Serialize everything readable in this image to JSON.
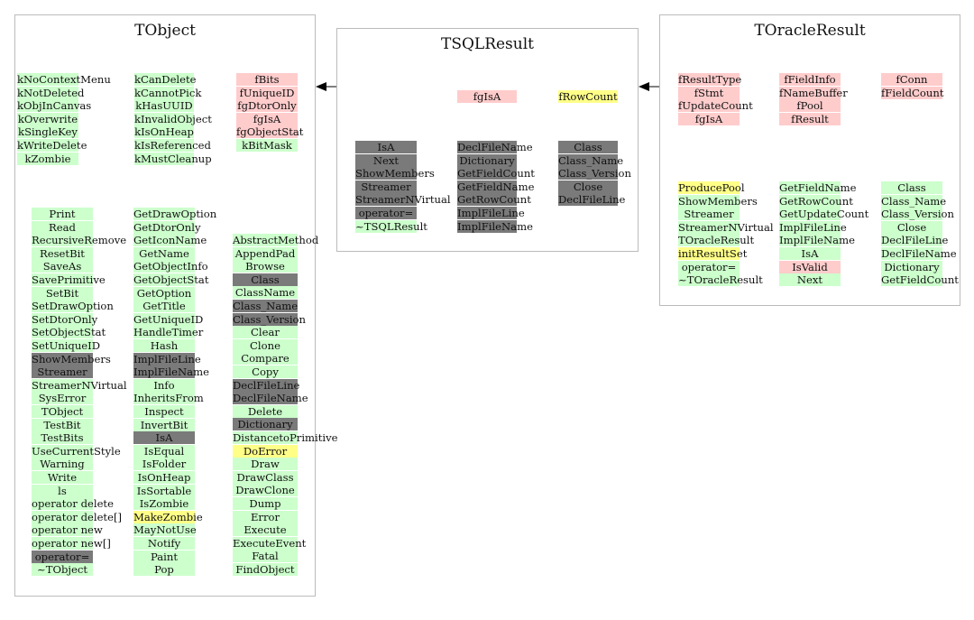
{
  "classes": {
    "tobject": {
      "title": "TObject",
      "columns": [
        {
          "cells": [
            {
              "t": "kNoContextMenu",
              "c": "green"
            },
            {
              "t": "kNotDeleted",
              "c": "green"
            },
            {
              "t": "kObjInCanvas",
              "c": "green"
            },
            {
              "t": "kOverwrite",
              "c": "green"
            },
            {
              "t": "kSingleKey",
              "c": "green"
            },
            {
              "t": "kWriteDelete",
              "c": "green"
            },
            {
              "t": "kZombie",
              "c": "green"
            }
          ]
        },
        {
          "cells": [
            {
              "t": "kCanDelete",
              "c": "green"
            },
            {
              "t": "kCannotPick",
              "c": "green"
            },
            {
              "t": "kHasUUID",
              "c": "green"
            },
            {
              "t": "kInvalidObject",
              "c": "green"
            },
            {
              "t": "kIsOnHeap",
              "c": "green"
            },
            {
              "t": "kIsReferenced",
              "c": "green"
            },
            {
              "t": "kMustCleanup",
              "c": "green"
            }
          ]
        },
        {
          "cells": [
            {
              "t": "fBits",
              "c": "pink"
            },
            {
              "t": "fUniqueID",
              "c": "pink"
            },
            {
              "t": "fgDtorOnly",
              "c": "pink"
            },
            {
              "t": "fgIsA",
              "c": "pink"
            },
            {
              "t": "fgObjectStat",
              "c": "pink"
            },
            {
              "t": "kBitMask",
              "c": "green"
            }
          ]
        },
        {
          "cells": [
            {
              "t": "Print",
              "c": "green"
            },
            {
              "t": "Read",
              "c": "green"
            },
            {
              "t": "RecursiveRemove",
              "c": "green"
            },
            {
              "t": "ResetBit",
              "c": "green"
            },
            {
              "t": "SaveAs",
              "c": "green"
            },
            {
              "t": "SavePrimitive",
              "c": "green"
            },
            {
              "t": "SetBit",
              "c": "green"
            },
            {
              "t": "SetDrawOption",
              "c": "green"
            },
            {
              "t": "SetDtorOnly",
              "c": "green"
            },
            {
              "t": "SetObjectStat",
              "c": "green"
            },
            {
              "t": "SetUniqueID",
              "c": "green"
            },
            {
              "t": "ShowMembers",
              "c": "gray"
            },
            {
              "t": "Streamer",
              "c": "gray"
            },
            {
              "t": "StreamerNVirtual",
              "c": "green"
            },
            {
              "t": "SysError",
              "c": "green"
            },
            {
              "t": "TObject",
              "c": "green"
            },
            {
              "t": "TestBit",
              "c": "green"
            },
            {
              "t": "TestBits",
              "c": "green"
            },
            {
              "t": "UseCurrentStyle",
              "c": "green"
            },
            {
              "t": "Warning",
              "c": "green"
            },
            {
              "t": "Write",
              "c": "green"
            },
            {
              "t": "ls",
              "c": "green"
            },
            {
              "t": "operator delete",
              "c": "green"
            },
            {
              "t": "operator delete[]",
              "c": "green"
            },
            {
              "t": "operator new",
              "c": "green"
            },
            {
              "t": "operator new[]",
              "c": "green"
            },
            {
              "t": "operator=",
              "c": "gray"
            },
            {
              "t": "~TObject",
              "c": "green"
            }
          ]
        },
        {
          "cells": [
            {
              "t": "GetDrawOption",
              "c": "green"
            },
            {
              "t": "GetDtorOnly",
              "c": "green"
            },
            {
              "t": "GetIconName",
              "c": "green"
            },
            {
              "t": "GetName",
              "c": "green"
            },
            {
              "t": "GetObjectInfo",
              "c": "green"
            },
            {
              "t": "GetObjectStat",
              "c": "green"
            },
            {
              "t": "GetOption",
              "c": "green"
            },
            {
              "t": "GetTitle",
              "c": "green"
            },
            {
              "t": "GetUniqueID",
              "c": "green"
            },
            {
              "t": "HandleTimer",
              "c": "green"
            },
            {
              "t": "Hash",
              "c": "green"
            },
            {
              "t": "ImplFileLine",
              "c": "gray"
            },
            {
              "t": "ImplFileName",
              "c": "gray"
            },
            {
              "t": "Info",
              "c": "green"
            },
            {
              "t": "InheritsFrom",
              "c": "green"
            },
            {
              "t": "Inspect",
              "c": "green"
            },
            {
              "t": "InvertBit",
              "c": "green"
            },
            {
              "t": "IsA",
              "c": "gray"
            },
            {
              "t": "IsEqual",
              "c": "green"
            },
            {
              "t": "IsFolder",
              "c": "green"
            },
            {
              "t": "IsOnHeap",
              "c": "green"
            },
            {
              "t": "IsSortable",
              "c": "green"
            },
            {
              "t": "IsZombie",
              "c": "green"
            },
            {
              "t": "MakeZombie",
              "c": "yellow"
            },
            {
              "t": "MayNotUse",
              "c": "green"
            },
            {
              "t": "Notify",
              "c": "green"
            },
            {
              "t": "Paint",
              "c": "green"
            },
            {
              "t": "Pop",
              "c": "green"
            }
          ]
        },
        {
          "cells": [
            {
              "t": "AbstractMethod",
              "c": "green"
            },
            {
              "t": "AppendPad",
              "c": "green"
            },
            {
              "t": "Browse",
              "c": "green"
            },
            {
              "t": "Class",
              "c": "gray"
            },
            {
              "t": "ClassName",
              "c": "green"
            },
            {
              "t": "Class_Name",
              "c": "gray"
            },
            {
              "t": "Class_Version",
              "c": "gray"
            },
            {
              "t": "Clear",
              "c": "green"
            },
            {
              "t": "Clone",
              "c": "green"
            },
            {
              "t": "Compare",
              "c": "green"
            },
            {
              "t": "Copy",
              "c": "green"
            },
            {
              "t": "DeclFileLine",
              "c": "gray"
            },
            {
              "t": "DeclFileName",
              "c": "gray"
            },
            {
              "t": "Delete",
              "c": "green"
            },
            {
              "t": "Dictionary",
              "c": "gray"
            },
            {
              "t": "DistancetoPrimitive",
              "c": "green"
            },
            {
              "t": "DoError",
              "c": "yellow"
            },
            {
              "t": "Draw",
              "c": "green"
            },
            {
              "t": "DrawClass",
              "c": "green"
            },
            {
              "t": "DrawClone",
              "c": "green"
            },
            {
              "t": "Dump",
              "c": "green"
            },
            {
              "t": "Error",
              "c": "green"
            },
            {
              "t": "Execute",
              "c": "green"
            },
            {
              "t": "ExecuteEvent",
              "c": "green"
            },
            {
              "t": "Fatal",
              "c": "green"
            },
            {
              "t": "FindObject",
              "c": "green"
            }
          ]
        }
      ]
    },
    "tsqlresult": {
      "title": "TSQLResult",
      "columns": [
        {
          "cells": [
            {
              "t": "fgIsA",
              "c": "pink"
            }
          ]
        },
        {
          "cells": [
            {
              "t": "fRowCount",
              "c": "yellow"
            }
          ]
        },
        {
          "cells": [
            {
              "t": "IsA",
              "c": "gray"
            },
            {
              "t": "Next",
              "c": "gray"
            },
            {
              "t": "ShowMembers",
              "c": "gray"
            },
            {
              "t": "Streamer",
              "c": "gray"
            },
            {
              "t": "StreamerNVirtual",
              "c": "gray"
            },
            {
              "t": "operator=",
              "c": "gray"
            },
            {
              "t": "~TSQLResult",
              "c": "green"
            }
          ]
        },
        {
          "cells": [
            {
              "t": "DeclFileName",
              "c": "gray"
            },
            {
              "t": "Dictionary",
              "c": "gray"
            },
            {
              "t": "GetFieldCount",
              "c": "gray"
            },
            {
              "t": "GetFieldName",
              "c": "gray"
            },
            {
              "t": "GetRowCount",
              "c": "gray"
            },
            {
              "t": "ImplFileLine",
              "c": "gray"
            },
            {
              "t": "ImplFileName",
              "c": "gray"
            }
          ]
        },
        {
          "cells": [
            {
              "t": "Class",
              "c": "gray"
            },
            {
              "t": "Class_Name",
              "c": "gray"
            },
            {
              "t": "Class_Version",
              "c": "gray"
            },
            {
              "t": "Close",
              "c": "gray"
            },
            {
              "t": "DeclFileLine",
              "c": "gray"
            }
          ]
        }
      ]
    },
    "toracleresult": {
      "title": "TOracleResult",
      "columns": [
        {
          "cells": [
            {
              "t": "fResultType",
              "c": "pink"
            },
            {
              "t": "fStmt",
              "c": "pink"
            },
            {
              "t": "fUpdateCount",
              "c": "pink"
            },
            {
              "t": "fgIsA",
              "c": "pink"
            }
          ]
        },
        {
          "cells": [
            {
              "t": "fFieldInfo",
              "c": "pink"
            },
            {
              "t": "fNameBuffer",
              "c": "pink"
            },
            {
              "t": "fPool",
              "c": "pink"
            },
            {
              "t": "fResult",
              "c": "pink"
            }
          ]
        },
        {
          "cells": [
            {
              "t": "fConn",
              "c": "pink"
            },
            {
              "t": "fFieldCount",
              "c": "pink"
            }
          ]
        },
        {
          "cells": [
            {
              "t": "ProducePool",
              "c": "yellow"
            },
            {
              "t": "ShowMembers",
              "c": "green"
            },
            {
              "t": "Streamer",
              "c": "green"
            },
            {
              "t": "StreamerNVirtual",
              "c": "green"
            },
            {
              "t": "TOracleResult",
              "c": "green"
            },
            {
              "t": "initResultSet",
              "c": "yellow"
            },
            {
              "t": "operator=",
              "c": "green"
            },
            {
              "t": "~TOracleResult",
              "c": "green"
            }
          ]
        },
        {
          "cells": [
            {
              "t": "GetFieldName",
              "c": "green"
            },
            {
              "t": "GetRowCount",
              "c": "green"
            },
            {
              "t": "GetUpdateCount",
              "c": "green"
            },
            {
              "t": "ImplFileLine",
              "c": "green"
            },
            {
              "t": "ImplFileName",
              "c": "green"
            },
            {
              "t": "IsA",
              "c": "green"
            },
            {
              "t": "IsValid",
              "c": "pink"
            },
            {
              "t": "Next",
              "c": "green"
            }
          ]
        },
        {
          "cells": [
            {
              "t": "Class",
              "c": "green"
            },
            {
              "t": "Class_Name",
              "c": "green"
            },
            {
              "t": "Class_Version",
              "c": "green"
            },
            {
              "t": "Close",
              "c": "green"
            },
            {
              "t": "DeclFileLine",
              "c": "green"
            },
            {
              "t": "DeclFileName",
              "c": "green"
            },
            {
              "t": "Dictionary",
              "c": "green"
            },
            {
              "t": "GetFieldCount",
              "c": "green"
            }
          ]
        }
      ]
    }
  },
  "colors": {
    "green": "#ccffcc",
    "gray": "#7a7a7a",
    "pink": "#ffcccc",
    "yellow": "#ffff88",
    "border": "#bbbbbb",
    "arrow": "#000000"
  },
  "edges": [
    {
      "from": "TOracleResult",
      "to": "TSQLResult",
      "kind": "inherits"
    },
    {
      "from": "TSQLResult",
      "to": "TObject",
      "kind": "inherits"
    }
  ]
}
